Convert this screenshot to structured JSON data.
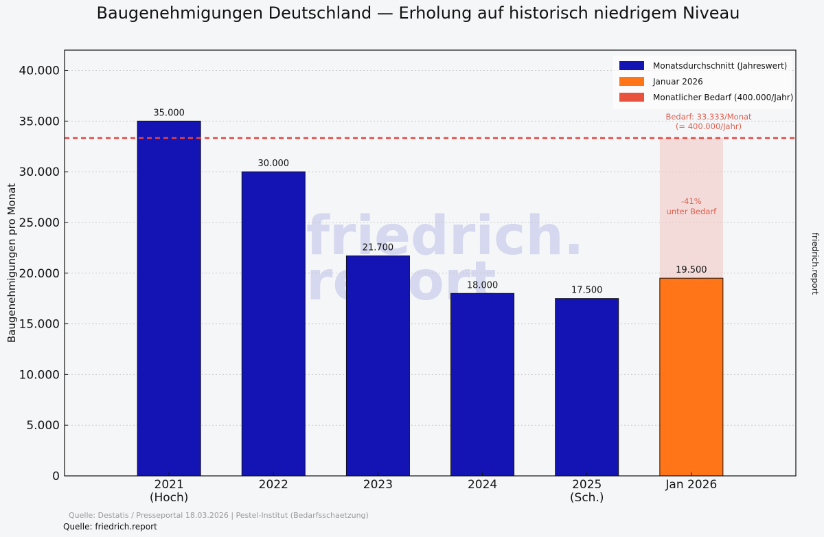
{
  "chart_data": {
    "type": "bar",
    "title": "Baugenehmigungen Deutschland — Erholung auf historisch niedrigem Niveau",
    "ylabel": "Baugenehmigungen pro Monat",
    "xlabel": "",
    "ylim": [
      0,
      42000
    ],
    "yticks": [
      0,
      5000,
      10000,
      15000,
      20000,
      25000,
      30000,
      35000,
      40000
    ],
    "ytick_labels": [
      "0",
      "5.000",
      "10.000",
      "15.000",
      "20.000",
      "25.000",
      "30.000",
      "35.000",
      "40.000"
    ],
    "grid": "horizontal dotted",
    "categories": [
      [
        "2021",
        "(Hoch)"
      ],
      [
        "2022"
      ],
      [
        "2023"
      ],
      [
        "2024"
      ],
      [
        "2025",
        "(Sch.)"
      ],
      [
        "Jan 2026"
      ]
    ],
    "values": [
      35000,
      30000,
      21700,
      18000,
      17500,
      19500
    ],
    "value_labels": [
      "35.000",
      "30.000",
      "21.700",
      "18.000",
      "17.500",
      "19.500"
    ],
    "bar_colors": [
      "#1414b4",
      "#1414b4",
      "#1414b4",
      "#1414b4",
      "#1414b4",
      "#ff7518"
    ],
    "reference_line": {
      "value": 33333,
      "color": "#e8423c",
      "label_lines": [
        "Bedarf: 33.333/Monat",
        "(= 400.000/Jahr)"
      ]
    },
    "gap_annotation": {
      "lines": [
        "-41%",
        "unter Bedarf"
      ],
      "color": "#e06050"
    },
    "legend": {
      "placement": "top-right",
      "entries": [
        {
          "label": "Monatsdurchschnitt (Jahreswert)",
          "color": "#1414b4"
        },
        {
          "label": "Januar 2026",
          "color": "#ff7518"
        },
        {
          "label": "Monatlicher Bedarf (400.000/Jahr)",
          "color": "#e8523c"
        }
      ]
    },
    "watermark": [
      "friedrich.",
      "report"
    ],
    "side_label": "friedrich.report",
    "source_line": "Quelle: Destatis / Presseportal 18.03.2026 | Pestel-Institut (Bedarfsschaetzung)",
    "footer_line": "Quelle: friedrich.report"
  }
}
